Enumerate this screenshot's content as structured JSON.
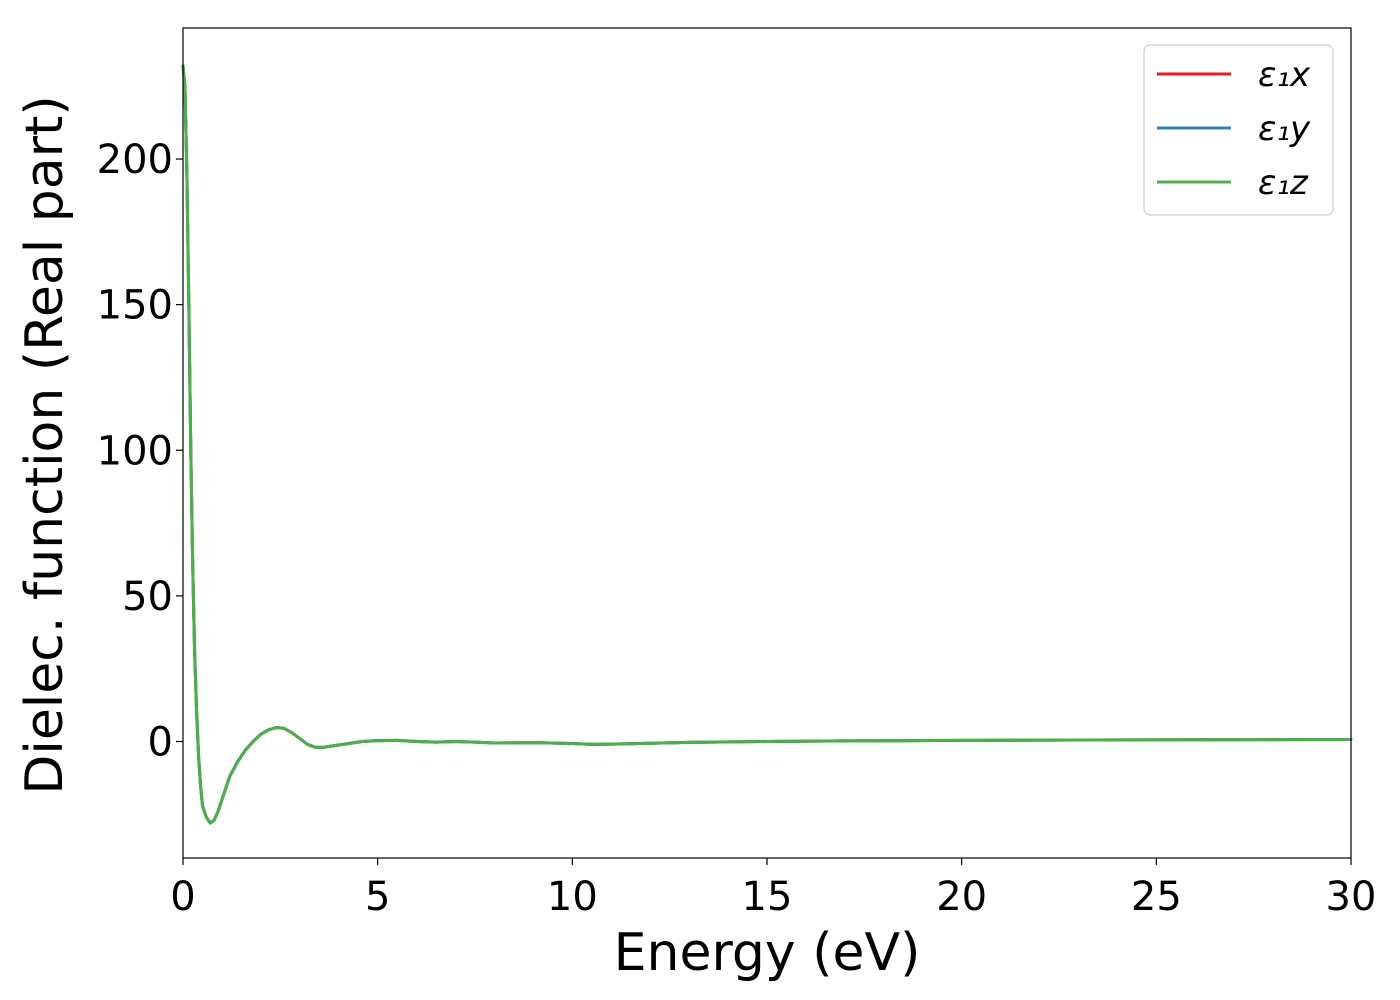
{
  "chart_data": {
    "type": "line",
    "title": "",
    "xlabel": "Energy (eV)",
    "ylabel": "Dielec. function (Real part)",
    "xlim": [
      0,
      30
    ],
    "ylim": [
      -40,
      245
    ],
    "xticks": [
      0,
      5,
      10,
      15,
      20,
      25,
      30
    ],
    "yticks": [
      0,
      50,
      100,
      150,
      200
    ],
    "grid": false,
    "legend_position": "top-right",
    "series": [
      {
        "name": "ε₁x",
        "color": "#e41a1c",
        "x": [
          0.0,
          0.05,
          0.1,
          0.15,
          0.2,
          0.25,
          0.3,
          0.35,
          0.4,
          0.45,
          0.5,
          0.6,
          0.7,
          0.8,
          0.9,
          1.0,
          1.1,
          1.2,
          1.4,
          1.6,
          1.8,
          2.0,
          2.2,
          2.4,
          2.6,
          2.8,
          3.0,
          3.2,
          3.4,
          3.6,
          3.8,
          4.2,
          4.6,
          5.0,
          5.5,
          6.0,
          6.5,
          7.0,
          7.5,
          8.0,
          9.0,
          10.0,
          10.5,
          11.0,
          12.0,
          13.0,
          15.0,
          17.0,
          20.0,
          23.0,
          26.0,
          30.0
        ],
        "values": [
          232,
          225,
          195,
          150,
          100,
          60,
          30,
          10,
          -5,
          -15,
          -22,
          -26,
          -28,
          -27,
          -24,
          -20,
          -16,
          -12,
          -7,
          -3,
          0,
          2.5,
          4,
          4.8,
          4.5,
          3,
          1,
          -1,
          -2,
          -2,
          -1.6,
          -0.8,
          0,
          0.3,
          0.4,
          0,
          -0.2,
          0,
          -0.2,
          -0.5,
          -0.4,
          -0.7,
          -1,
          -0.9,
          -0.6,
          -0.3,
          0,
          0.2,
          0.4,
          0.5,
          0.6,
          0.7
        ]
      },
      {
        "name": "ε₁y",
        "color": "#377eb8",
        "x": [
          0.0,
          0.05,
          0.1,
          0.15,
          0.2,
          0.25,
          0.3,
          0.35,
          0.4,
          0.45,
          0.5,
          0.6,
          0.7,
          0.8,
          0.9,
          1.0,
          1.1,
          1.2,
          1.4,
          1.6,
          1.8,
          2.0,
          2.2,
          2.4,
          2.6,
          2.8,
          3.0,
          3.2,
          3.4,
          3.6,
          3.8,
          4.2,
          4.6,
          5.0,
          5.5,
          6.0,
          6.5,
          7.0,
          7.5,
          8.0,
          9.0,
          10.0,
          10.5,
          11.0,
          12.0,
          13.0,
          15.0,
          17.0,
          20.0,
          23.0,
          26.0,
          30.0
        ],
        "values": [
          232,
          225,
          195,
          150,
          100,
          60,
          30,
          10,
          -5,
          -15,
          -22,
          -26,
          -28,
          -27,
          -24,
          -20,
          -16,
          -12,
          -7,
          -3,
          0,
          2.5,
          4,
          4.8,
          4.5,
          3,
          1,
          -1,
          -2,
          -2,
          -1.6,
          -0.8,
          0,
          0.3,
          0.4,
          0,
          -0.2,
          0,
          -0.2,
          -0.5,
          -0.4,
          -0.7,
          -1,
          -0.9,
          -0.6,
          -0.3,
          0,
          0.2,
          0.4,
          0.5,
          0.6,
          0.7
        ]
      },
      {
        "name": "ε₁z",
        "color": "#4daf4a",
        "x": [
          0.0,
          0.05,
          0.1,
          0.15,
          0.2,
          0.25,
          0.3,
          0.35,
          0.4,
          0.45,
          0.5,
          0.6,
          0.7,
          0.8,
          0.9,
          1.0,
          1.1,
          1.2,
          1.4,
          1.6,
          1.8,
          2.0,
          2.2,
          2.4,
          2.6,
          2.8,
          3.0,
          3.2,
          3.4,
          3.6,
          3.8,
          4.2,
          4.6,
          5.0,
          5.5,
          6.0,
          6.5,
          7.0,
          7.5,
          8.0,
          9.0,
          10.0,
          10.5,
          11.0,
          12.0,
          13.0,
          15.0,
          17.0,
          20.0,
          23.0,
          26.0,
          30.0
        ],
        "values": [
          232,
          225,
          195,
          150,
          100,
          60,
          30,
          10,
          -5,
          -15,
          -22,
          -26,
          -28,
          -27,
          -24,
          -20,
          -16,
          -12,
          -7,
          -3,
          0,
          2.5,
          4,
          4.8,
          4.5,
          3,
          1,
          -1,
          -2,
          -2,
          -1.6,
          -0.8,
          0,
          0.3,
          0.4,
          0,
          -0.2,
          0,
          -0.2,
          -0.5,
          -0.4,
          -0.7,
          -1,
          -0.9,
          -0.6,
          -0.3,
          0,
          0.2,
          0.4,
          0.5,
          0.6,
          0.7
        ]
      }
    ]
  }
}
